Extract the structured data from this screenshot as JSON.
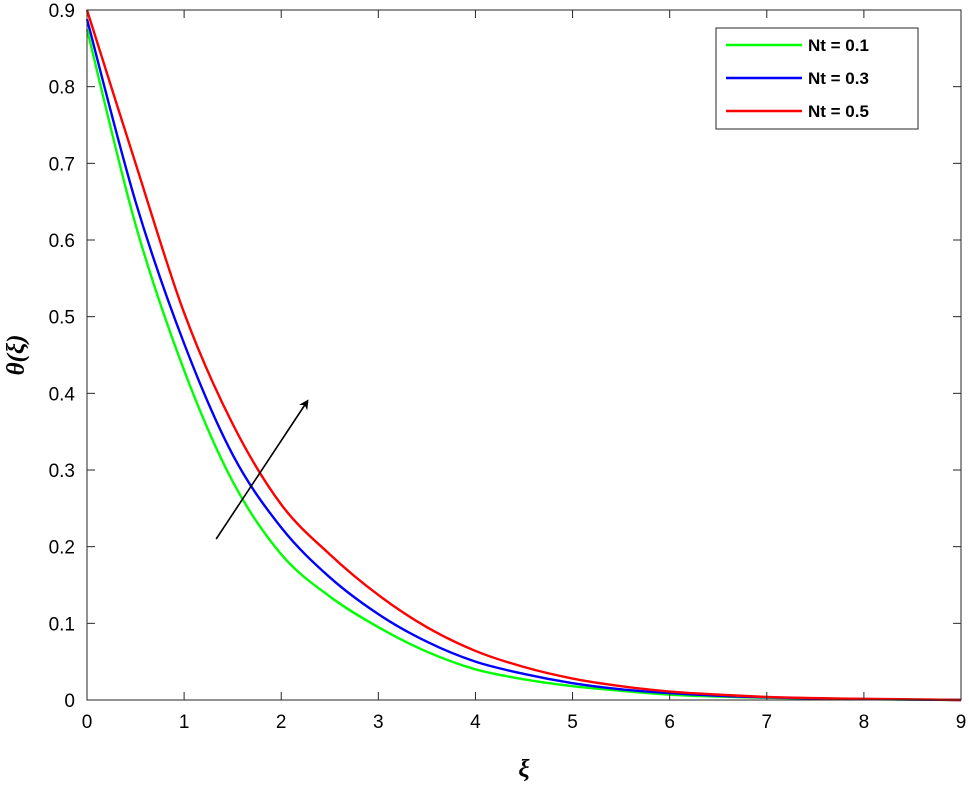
{
  "chart_data": {
    "type": "line",
    "title": "",
    "xlabel": "ξ",
    "ylabel": "θ(ξ)",
    "xlim": [
      0,
      9
    ],
    "ylim": [
      0,
      0.9
    ],
    "xticks": [
      "0",
      "1",
      "2",
      "3",
      "4",
      "5",
      "6",
      "7",
      "8",
      "9"
    ],
    "yticks": [
      "0",
      "0.1",
      "0.2",
      "0.3",
      "0.4",
      "0.5",
      "0.6",
      "0.7",
      "0.8",
      "0.9"
    ],
    "grid": false,
    "legend_position": "top-right",
    "x": [
      0,
      0.5,
      1,
      1.5,
      2,
      2.5,
      3,
      3.5,
      4,
      4.5,
      5,
      5.5,
      6,
      6.5,
      7,
      7.5,
      8,
      8.5,
      9
    ],
    "series": [
      {
        "name": "Nt = 0.1",
        "color": "#00ff00",
        "values": [
          0.875,
          0.62,
          0.43,
          0.285,
          0.19,
          0.135,
          0.095,
          0.063,
          0.04,
          0.027,
          0.018,
          0.012,
          0.007,
          0.0045,
          0.003,
          0.0018,
          0.001,
          0.0005,
          0.0
        ]
      },
      {
        "name": "Nt = 0.3",
        "color": "#0000ff",
        "values": [
          0.888,
          0.65,
          0.465,
          0.32,
          0.225,
          0.16,
          0.112,
          0.076,
          0.05,
          0.034,
          0.022,
          0.014,
          0.009,
          0.0055,
          0.0035,
          0.002,
          0.0012,
          0.0006,
          0.0
        ]
      },
      {
        "name": "Nt = 0.5",
        "color": "#ff0000",
        "values": [
          0.9,
          0.7,
          0.505,
          0.36,
          0.255,
          0.19,
          0.137,
          0.095,
          0.064,
          0.043,
          0.028,
          0.018,
          0.011,
          0.007,
          0.004,
          0.0025,
          0.0015,
          0.0008,
          0.0
        ]
      }
    ],
    "annotation": {
      "type": "arrow",
      "from": [
        1.33,
        0.21
      ],
      "to": [
        2.27,
        0.39
      ],
      "color": "#000000"
    }
  }
}
